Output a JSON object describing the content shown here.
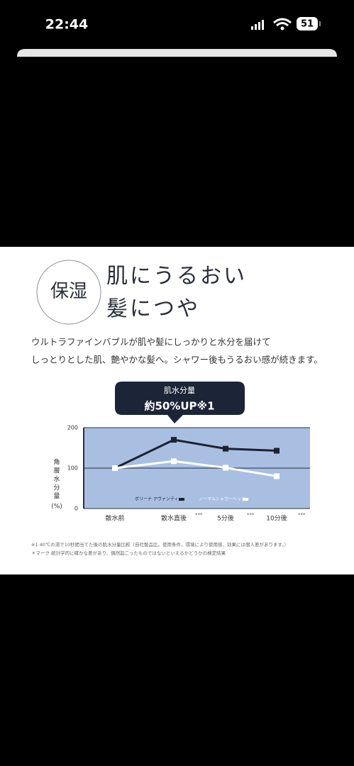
{
  "status_bar": {
    "time": "22:44",
    "battery": "51"
  },
  "content": {
    "badge": "保湿",
    "headline": [
      "肌にうるおい",
      "髪につや"
    ],
    "description": [
      "ウルトラファインバブルが肌や髪にしっかりと水分を届けて",
      "しっとりとした肌、艶やかな髪へ。シャワー後もうるおい感が続きます。"
    ],
    "footnotes": [
      "※1 40℃の湯で10秒間当てた後の肌水分量比較（自社製品比。使用条件、環境により使用感、効果には個人差があります。）",
      "＊マーク 統計学的に確かな差があり、偶然起こったものではないといえるかどうかの検定結果"
    ]
  },
  "chart_data": {
    "type": "line",
    "annotation": {
      "title": "肌水分量",
      "text": "約50%UP※1"
    },
    "y_label": "角層水分量",
    "y_unit": "(%)",
    "categories": [
      "散水前",
      "散水直後",
      "5分後",
      "10分後"
    ],
    "significance": [
      null,
      "***",
      "***",
      "***"
    ],
    "series": [
      {
        "name": "ボリーナ アヴァンティ",
        "color": "#1c2230",
        "values": [
          100,
          170,
          148,
          143
        ]
      },
      {
        "name": "ノーマルシャワーヘッド",
        "color": "#ffffff",
        "values": [
          100,
          117,
          101,
          80
        ]
      }
    ],
    "ylim": [
      0,
      200
    ],
    "yticks": [
      0,
      100,
      200
    ],
    "grid": true
  }
}
